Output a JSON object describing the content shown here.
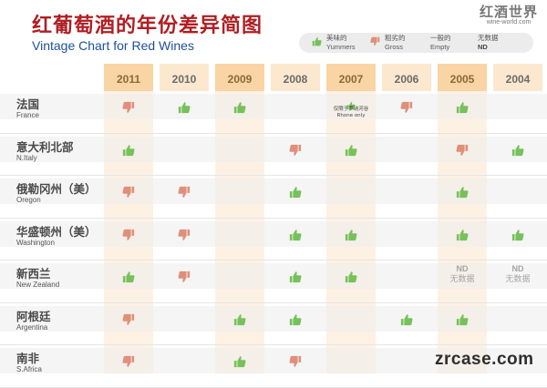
{
  "title_zh": "红葡萄酒的年份差异简图",
  "title_en": "Vintage Chart for Red Wines",
  "logo": {
    "zh": "红酒世界",
    "en": "wine-world.com"
  },
  "legend": {
    "yummers_zh": "美味的",
    "yummers_en": "Yummers",
    "gross_zh": "粗劣的",
    "gross_en": "Gross",
    "empty_zh": "一般的",
    "empty_en": "Empty",
    "nodata_zh": "无数据",
    "nodata_en": "ND"
  },
  "colors": {
    "good": "#77c15a",
    "bad": "#e08f7a",
    "title": "#b01e23",
    "subtitle": "#1e4f9a"
  },
  "watermark": "zrcase.com",
  "chart_data": {
    "type": "table",
    "title": "红葡萄酒的年份差异简图",
    "subtitle": "Vintage Chart for Red Wines",
    "columns": [
      "2011",
      "2010",
      "2009",
      "2008",
      "2007",
      "2006",
      "2005",
      "2004"
    ],
    "rows": [
      {
        "zh": "法国",
        "en": "France",
        "ratings": [
          "gross",
          "yummers",
          "yummers",
          "empty",
          "yummers",
          "gross",
          "yummers",
          "empty"
        ],
        "note_2007": "仅限于罗讷河谷 Rhone only"
      },
      {
        "zh": "意大利北部",
        "en": "N.Italy",
        "ratings": [
          "yummers",
          "empty",
          "empty",
          "gross",
          "yummers",
          "empty",
          "gross",
          "yummers"
        ]
      },
      {
        "zh": "俄勒冈州（美）",
        "en": "Oregon",
        "ratings": [
          "gross",
          "gross",
          "empty",
          "yummers",
          "empty",
          "empty",
          "yummers",
          "empty"
        ]
      },
      {
        "zh": "华盛顿州（美）",
        "en": "Washington",
        "ratings": [
          "gross",
          "gross",
          "empty",
          "yummers",
          "yummers",
          "empty",
          "yummers",
          "yummers"
        ]
      },
      {
        "zh": "新西兰",
        "en": "New Zealand",
        "ratings": [
          "yummers",
          "gross",
          "empty",
          "yummers",
          "yummers",
          "empty",
          "nodata",
          "nodata"
        ]
      },
      {
        "zh": "阿根廷",
        "en": "Argentina",
        "ratings": [
          "gross",
          "empty",
          "yummers",
          "yummers",
          "empty",
          "yummers",
          "yummers",
          "empty"
        ]
      },
      {
        "zh": "南非",
        "en": "S.Africa",
        "ratings": [
          "gross",
          "empty",
          "yummers",
          "gross",
          "empty",
          "empty",
          "empty",
          "empty"
        ]
      }
    ]
  }
}
